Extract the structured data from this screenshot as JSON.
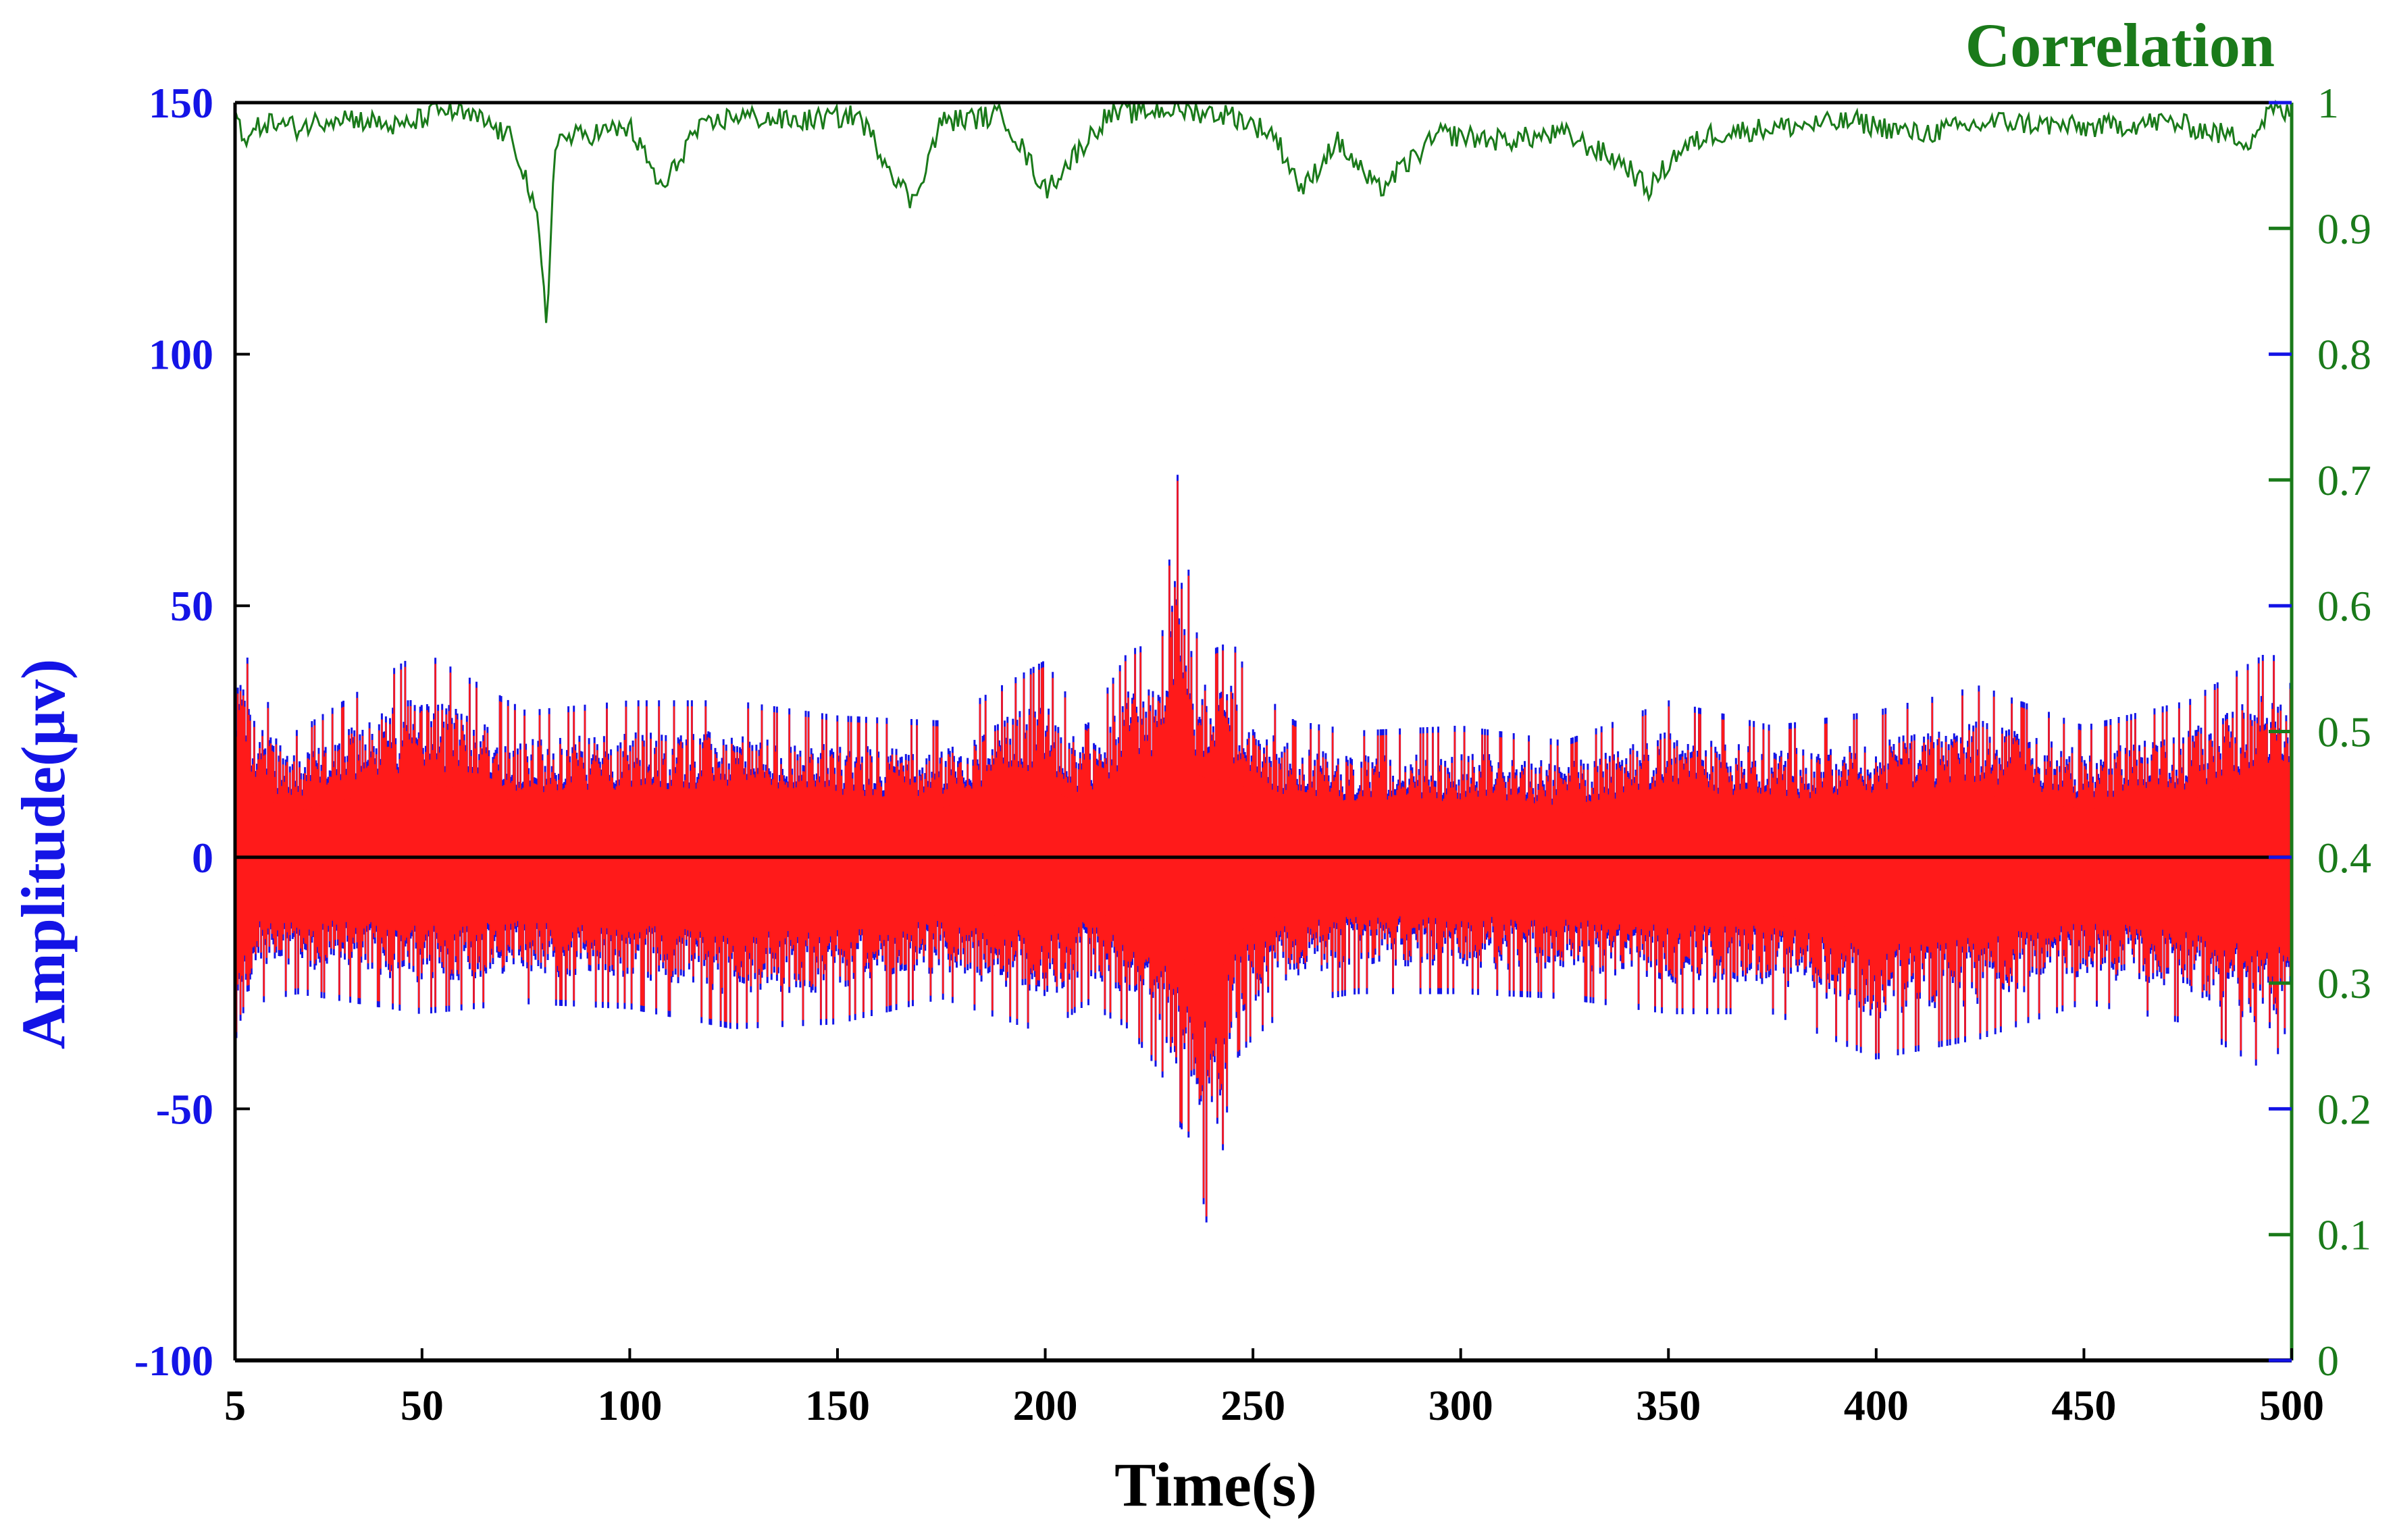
{
  "chart_data": {
    "type": "line",
    "title": "",
    "xlabel": "Time(s)",
    "ylabel_left": "Amplitude(μv)",
    "ylabel_right": "Correlation",
    "xlim": [
      0,
      500
    ],
    "ylim_left": [
      -100,
      150
    ],
    "ylim_right": [
      0,
      1
    ],
    "x_ticks": [
      "5",
      "50",
      "100",
      "150",
      "200",
      "250",
      "300",
      "350",
      "400",
      "450",
      "500"
    ],
    "x_tick_values": [
      5,
      50,
      100,
      150,
      200,
      250,
      300,
      350,
      400,
      450,
      500
    ],
    "y_left_ticks": [
      "150",
      "100",
      "50",
      "0",
      "-50",
      "-100"
    ],
    "y_left_tick_values": [
      150,
      100,
      50,
      0,
      -50,
      -100
    ],
    "y_right_ticks": [
      "1",
      "0.9",
      "0.8",
      "0.7",
      "0.6",
      "0.5",
      "0.4",
      "0.3",
      "0.2",
      "0.1",
      "0"
    ],
    "y_right_tick_values": [
      1,
      0.9,
      0.8,
      0.7,
      0.6,
      0.5,
      0.4,
      0.3,
      0.2,
      0.1,
      0
    ],
    "grid": false,
    "colors": {
      "signal_a": "#1414e6",
      "signal_b": "#ff1a1a",
      "mean_line": "#000000",
      "correlation": "#1a7a1a",
      "left_axis": "#1414e6",
      "right_axis": "#1a7a1a",
      "x_axis": "#000000"
    },
    "series": [
      {
        "axis": "left",
        "description_envelope": "amplitude envelope",
        "x": [
          5,
          10,
          20,
          50,
          75,
          100,
          125,
          150,
          175,
          200,
          210,
          220,
          228,
          232,
          236,
          240,
          245,
          250,
          260,
          275,
          300,
          325,
          350,
          375,
          400,
          425,
          450,
          475,
          495,
          500
        ],
        "upper": [
          48,
          32,
          24,
          40,
          28,
          30,
          30,
          27,
          26,
          38,
          25,
          40,
          42,
          76,
          44,
          40,
          42,
          33,
          26,
          24,
          25,
          22,
          30,
          25,
          28,
          33,
          25,
          30,
          40,
          33
        ],
        "lower": [
          -47,
          -28,
          -26,
          -30,
          -28,
          -29,
          -33,
          -32,
          -27,
          -34,
          -28,
          -33,
          -42,
          -52,
          -56,
          -78,
          -40,
          -35,
          -28,
          -26,
          -26,
          -27,
          -30,
          -30,
          -39,
          -35,
          -28,
          -32,
          -42,
          -30
        ]
      },
      {
        "axis": "right",
        "x": [
          5,
          8,
          12,
          20,
          30,
          45,
          55,
          65,
          72,
          75,
          78,
          80,
          82,
          90,
          100,
          108,
          115,
          125,
          140,
          155,
          168,
          175,
          190,
          200,
          215,
          230,
          245,
          255,
          262,
          270,
          280,
          295,
          310,
          325,
          340,
          345,
          352,
          360,
          375,
          395,
          410,
          430,
          450,
          470,
          490,
          495,
          500
        ],
        "values": [
          0.99,
          0.97,
          0.985,
          0.98,
          0.99,
          0.98,
          0.995,
          0.985,
          0.97,
          0.94,
          0.9,
          0.82,
          0.97,
          0.975,
          0.98,
          0.93,
          0.975,
          0.99,
          0.985,
          0.99,
          0.92,
          0.985,
          0.99,
          0.93,
          0.99,
          0.995,
          0.99,
          0.975,
          0.93,
          0.97,
          0.93,
          0.975,
          0.97,
          0.975,
          0.95,
          0.93,
          0.96,
          0.975,
          0.98,
          0.985,
          0.975,
          0.985,
          0.98,
          0.985,
          0.97,
          0.995,
          0.99
        ]
      }
    ]
  }
}
